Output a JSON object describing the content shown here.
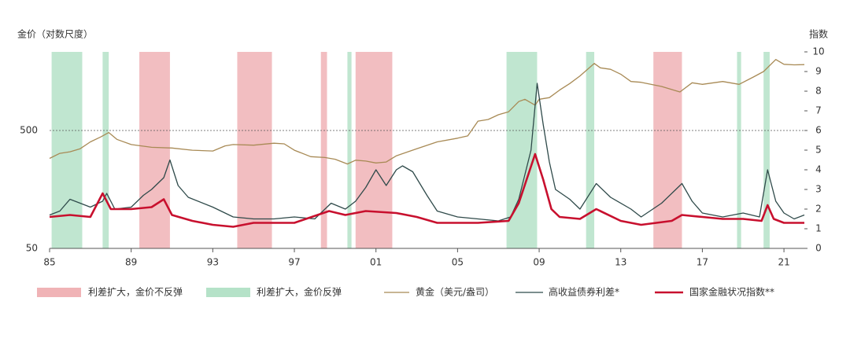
{
  "chart_data": {
    "type": "line",
    "y_label": "金价（对数尺度）",
    "y2_label": "指数",
    "xlim": [
      1985,
      2022
    ],
    "xticks": [
      {
        "value": 1985,
        "label": "85"
      },
      {
        "value": 1989,
        "label": "89"
      },
      {
        "value": 1993,
        "label": "93"
      },
      {
        "value": 1997,
        "label": "97"
      },
      {
        "value": 2001,
        "label": "01"
      },
      {
        "value": 2005,
        "label": "05"
      },
      {
        "value": 2009,
        "label": "09"
      },
      {
        "value": 2013,
        "label": "13"
      },
      {
        "value": 2017,
        "label": "17"
      },
      {
        "value": 2021,
        "label": "21"
      }
    ],
    "ylim": [
      50,
      2320
    ],
    "ylog": true,
    "yticks": [
      50,
      500
    ],
    "y2lim": [
      0,
      10
    ],
    "y2ticks": [
      0,
      1,
      2,
      3,
      4,
      5,
      6,
      7,
      8,
      9,
      10
    ],
    "reference_line_y": 500,
    "shaded_periods": [
      {
        "name": "利差扩大，金价不反弹",
        "color": "#f0b3b6",
        "ranges": [
          [
            1989.4,
            1990.9
          ],
          [
            1994.2,
            1995.9
          ],
          [
            1998.3,
            1998.6
          ],
          [
            2000.0,
            2001.8
          ],
          [
            2014.6,
            2016.0
          ]
        ]
      },
      {
        "name": "利差扩大，金价反弹",
        "color": "#b5e2c8",
        "ranges": [
          [
            1985.1,
            1986.6
          ],
          [
            1987.6,
            1987.9
          ],
          [
            1999.6,
            1999.8
          ],
          [
            2007.4,
            2008.9
          ],
          [
            2011.3,
            2011.7
          ],
          [
            2018.7,
            2018.9
          ],
          [
            2020.0,
            2020.3
          ]
        ]
      }
    ],
    "series": [
      {
        "name": "黄金（美元/盎司）",
        "color": "#a88a55",
        "width": 1.3,
        "x": [
          1985,
          1985.5,
          1986,
          1986.5,
          1987,
          1987.5,
          1987.9,
          1988.3,
          1989,
          1989.5,
          1990,
          1991,
          1992,
          1993,
          1993.6,
          1994,
          1995,
          1996,
          1996.5,
          1997,
          1997.8,
          1998.5,
          1999,
          1999.6,
          2000,
          2000.5,
          2001,
          2001.5,
          2002,
          2003,
          2004,
          2005,
          2005.5,
          2006,
          2006.5,
          2007,
          2007.5,
          2008,
          2008.3,
          2008.8,
          2009,
          2009.5,
          2010,
          2010.5,
          2011,
          2011.7,
          2012,
          2012.5,
          2013,
          2013.5,
          2014,
          2015,
          2015.9,
          2016.5,
          2017,
          2018,
          2018.8,
          2019.5,
          2020,
          2020.6,
          2021,
          2021.5,
          2022
        ],
        "values": [
          290,
          320,
          330,
          350,
          400,
          440,
          480,
          420,
          380,
          370,
          360,
          355,
          340,
          335,
          370,
          380,
          375,
          390,
          385,
          340,
          300,
          295,
          285,
          260,
          280,
          275,
          265,
          270,
          305,
          350,
          400,
          430,
          450,
          600,
          620,
          680,
          720,
          880,
          920,
          820,
          920,
          950,
          1100,
          1250,
          1450,
          1850,
          1700,
          1650,
          1500,
          1300,
          1280,
          1180,
          1060,
          1270,
          1230,
          1300,
          1230,
          1420,
          1580,
          2000,
          1820,
          1800,
          1810
        ]
      },
      {
        "name": "高收益债券利差*",
        "color": "#2f4a4a",
        "width": 1.3,
        "axis": "y2",
        "x": [
          1985,
          1985.5,
          1986,
          1986.5,
          1987,
          1987.6,
          1987.8,
          1988.2,
          1989,
          1989.6,
          1990,
          1990.6,
          1990.9,
          1991.3,
          1991.8,
          1993,
          1994,
          1995,
          1996,
          1997,
          1998,
          1998.8,
          1999.5,
          2000,
          2000.5,
          2001,
          2001.5,
          2002,
          2002.3,
          2002.8,
          2003.5,
          2004,
          2005,
          2006,
          2007,
          2007.6,
          2008,
          2008.6,
          2008.9,
          2009.2,
          2009.5,
          2009.8,
          2010.5,
          2011,
          2011.8,
          2012.5,
          2013.5,
          2014,
          2015,
          2016,
          2016.5,
          2017,
          2018,
          2019,
          2019.8,
          2020.2,
          2020.6,
          2021,
          2021.5,
          2022
        ],
        "values": [
          1.7,
          1.9,
          2.5,
          2.3,
          2.1,
          2.4,
          2.8,
          2.0,
          2.1,
          2.7,
          3.0,
          3.6,
          4.5,
          3.2,
          2.6,
          2.1,
          1.6,
          1.5,
          1.5,
          1.6,
          1.5,
          2.3,
          2.0,
          2.4,
          3.1,
          4.0,
          3.2,
          4.0,
          4.2,
          3.9,
          2.7,
          1.9,
          1.6,
          1.5,
          1.4,
          1.6,
          2.5,
          5.0,
          8.4,
          6.3,
          4.4,
          3.0,
          2.5,
          2.0,
          3.3,
          2.6,
          2.0,
          1.6,
          2.3,
          3.3,
          2.4,
          1.8,
          1.6,
          1.8,
          1.6,
          4.0,
          2.4,
          1.8,
          1.5,
          1.7
        ]
      },
      {
        "name": "国家金融状况指数**",
        "color": "#c8102e",
        "width": 2.6,
        "axis": "y2",
        "x": [
          1985,
          1986,
          1987,
          1987.6,
          1988,
          1989,
          1990,
          1990.6,
          1991,
          1992,
          1993,
          1994,
          1995,
          1997,
          1998.7,
          1999.5,
          2000.5,
          2002,
          2003,
          2004,
          2006,
          2007.5,
          2008,
          2008.8,
          2009.2,
          2009.6,
          2010,
          2011,
          2011.8,
          2013,
          2014,
          2015.5,
          2016,
          2017,
          2018,
          2019,
          2019.9,
          2020.2,
          2020.5,
          2021,
          2022
        ],
        "values": [
          1.6,
          1.7,
          1.6,
          2.8,
          2.0,
          2.0,
          2.1,
          2.5,
          1.7,
          1.4,
          1.2,
          1.1,
          1.3,
          1.3,
          1.9,
          1.7,
          1.9,
          1.8,
          1.6,
          1.3,
          1.3,
          1.4,
          2.3,
          4.8,
          3.5,
          2.0,
          1.6,
          1.5,
          2.0,
          1.4,
          1.2,
          1.4,
          1.7,
          1.6,
          1.5,
          1.5,
          1.4,
          2.2,
          1.5,
          1.3,
          1.3
        ]
      }
    ]
  }
}
